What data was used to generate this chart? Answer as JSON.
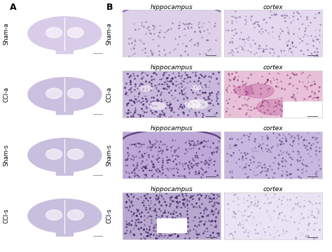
{
  "background_color": "#ffffff",
  "panel_A_label": "A",
  "panel_B_label": "B",
  "row_labels": [
    "Sham-a",
    "CCl-a",
    "Sham-s",
    "CCl-s"
  ],
  "col_labels_B": [
    "hippocampus",
    "cortex"
  ],
  "panel_A_bg": "#e8dff0",
  "panel_B_row_colors": [
    {
      "hippocampus": "#ddd0e8",
      "cortex": "#e4d8ee"
    },
    {
      "hippocampus": "#c8b8dc",
      "cortex": "#d8b0d8"
    },
    {
      "hippocampus": "#cbbfe0",
      "cortex": "#d5c8e8"
    },
    {
      "hippocampus": "#c8c0dc",
      "cortex": "#e8e0f0"
    }
  ],
  "brain_section_colors": [
    "#d8cce8",
    "#ccc0e0",
    "#c8bede",
    "#c8bede"
  ],
  "label_fontsize": 6.5,
  "panel_label_fontsize": 9,
  "col_label_fontsize": 6.5,
  "row_label_fontsize": 6,
  "fig_width": 4.74,
  "fig_height": 3.6
}
